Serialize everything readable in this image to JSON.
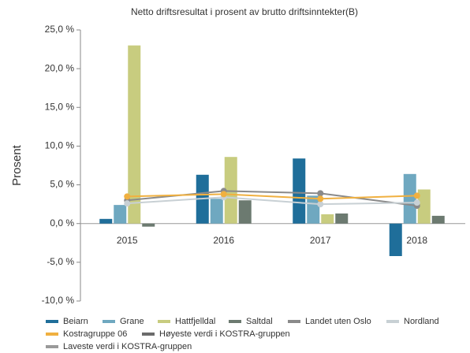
{
  "chart_data": {
    "type": "bar",
    "title": "Netto driftsresultat i prosent av brutto driftsinntekter(B)",
    "y_label": "Prosent",
    "categories": [
      "2015",
      "2016",
      "2017",
      "2018"
    ],
    "ylim": [
      -10,
      25
    ],
    "yticks": [
      {
        "value": 25,
        "label": "25,0 %"
      },
      {
        "value": 20,
        "label": "20,0 %"
      },
      {
        "value": 15,
        "label": "15,0 %"
      },
      {
        "value": 10,
        "label": "10,0 %"
      },
      {
        "value": 5,
        "label": "5,0 %"
      },
      {
        "value": 0,
        "label": "0,0 %"
      },
      {
        "value": -5,
        "label": "-5,0 %"
      },
      {
        "value": -10,
        "label": "-10,0 %"
      }
    ],
    "series": [
      {
        "name": "Beiarn",
        "type": "bar",
        "color": "#1f6e9a",
        "values": [
          0.6,
          6.3,
          8.4,
          -4.2
        ]
      },
      {
        "name": "Grane",
        "type": "bar",
        "color": "#6fa8c0",
        "values": [
          2.4,
          3.2,
          3.6,
          6.4
        ]
      },
      {
        "name": "Hattfjelldal",
        "type": "bar",
        "color": "#c8cc7f",
        "values": [
          23.0,
          8.6,
          1.2,
          4.4
        ]
      },
      {
        "name": "Saltdal",
        "type": "bar",
        "color": "#6c7a70",
        "values": [
          -0.4,
          3.0,
          1.3,
          1.0
        ]
      },
      {
        "name": "Landet uten Oslo",
        "type": "line",
        "color": "#8a8a8a",
        "values": [
          3.0,
          4.2,
          3.9,
          2.3
        ]
      },
      {
        "name": "Nordland",
        "type": "line",
        "color": "#c8d0d4",
        "values": [
          2.6,
          3.4,
          2.5,
          2.7
        ]
      },
      {
        "name": "Kostragruppe 06",
        "type": "line",
        "color": "#f0b040",
        "values": [
          3.5,
          3.8,
          3.2,
          3.6
        ]
      },
      {
        "name": "Høyeste verdi i KOSTRA-gruppen",
        "type": "line",
        "color": "#6b6b6b",
        "values": [
          null,
          null,
          null,
          null
        ]
      },
      {
        "name": "Laveste verdi i KOSTRA-gruppen",
        "type": "line",
        "color": "#9a9a9a",
        "values": [
          null,
          null,
          null,
          null
        ]
      }
    ]
  }
}
